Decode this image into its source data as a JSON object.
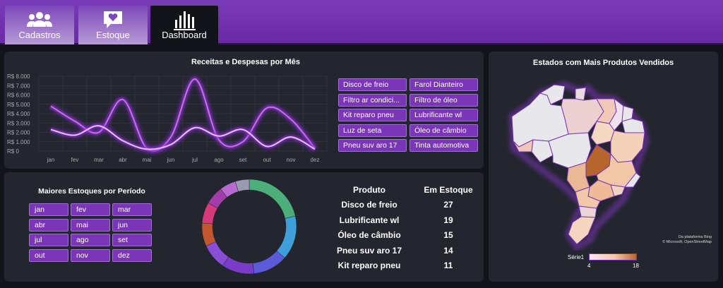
{
  "nav": {
    "tabs": [
      {
        "label": "Cadastros",
        "icon": "users-icon"
      },
      {
        "label": "Estoque",
        "icon": "heart-message-icon"
      },
      {
        "label": "Dashboard",
        "icon": "bar-chart-icon"
      }
    ],
    "active": "Dashboard"
  },
  "revenue_panel": {
    "title": "Receitas e Despesas por Mês",
    "product_filters": [
      "Disco de freio",
      "Farol Dianteiro",
      "Filtro ar condici...",
      "Filtro de óleo",
      "Kit reparo pneu",
      "Lubrificante wl",
      "Luz de seta",
      "Óleo de câmbio",
      "Pneu suv aro 17",
      "Tinta automotiva"
    ]
  },
  "stock_panel": {
    "title": "Maiores Estoques por Período",
    "month_filters": [
      "jan",
      "fev",
      "mar",
      "abr",
      "mai",
      "jun",
      "jul",
      "ago",
      "set",
      "out",
      "nov",
      "dez"
    ],
    "table": {
      "headers": [
        "Produto",
        "Em Estoque"
      ],
      "rows": [
        [
          "Disco de freio",
          "27"
        ],
        [
          "Lubrificante wl",
          "19"
        ],
        [
          "Óleo de câmbio",
          "15"
        ],
        [
          "Pneu suv aro 17",
          "14"
        ],
        [
          "Kit reparo pneu",
          "11"
        ]
      ]
    }
  },
  "map_panel": {
    "title": "Estados com Mais Produtos Vendidos",
    "legend_series": "Série1",
    "legend_min": "4",
    "legend_max": "18",
    "credit_line1": "Da plataforma Bing",
    "credit_line2": "© Microsoft, OpenStreetMap"
  },
  "colors": {
    "accent": "#7a35b8",
    "panel": "#23262e",
    "background": "#131419",
    "line_revenue": "#c56ae8",
    "line_expense": "#e6b6ff"
  },
  "chart_data": [
    {
      "type": "line",
      "title": "Receitas e Despesas por Mês",
      "categories": [
        "jan",
        "fev",
        "mar",
        "abr",
        "mai",
        "jun",
        "jul",
        "ago",
        "set",
        "out",
        "nov",
        "dez"
      ],
      "series": [
        {
          "values": [
            4800,
            3200,
            2000,
            5500,
            300,
            1500,
            7700,
            1200,
            1000,
            4600,
            3400,
            300
          ]
        },
        {
          "values": [
            2300,
            1700,
            2700,
            1100,
            200,
            700,
            2500,
            1600,
            2300,
            500,
            1500,
            200
          ]
        }
      ],
      "ylim": [
        0,
        8000
      ],
      "yticks": [
        "R$ 8.000",
        "R$ 7.000",
        "R$ 6.000",
        "R$ 5.000",
        "R$ 4.000",
        "R$ 3.000",
        "R$ 2.000",
        "R$ 1.000",
        "R$ 0"
      ],
      "grid": true
    },
    {
      "type": "pie",
      "variant": "donut",
      "values": [
        27,
        19,
        15,
        14,
        11,
        10,
        9,
        8,
        7,
        6
      ],
      "colors": [
        "#4caf7a",
        "#3f9fd8",
        "#5b5ad8",
        "#7a3cc8",
        "#8a4ed6",
        "#c2562e",
        "#d63a7a",
        "#a23ca8",
        "#b86ad0",
        "#9a9ab0"
      ]
    }
  ]
}
